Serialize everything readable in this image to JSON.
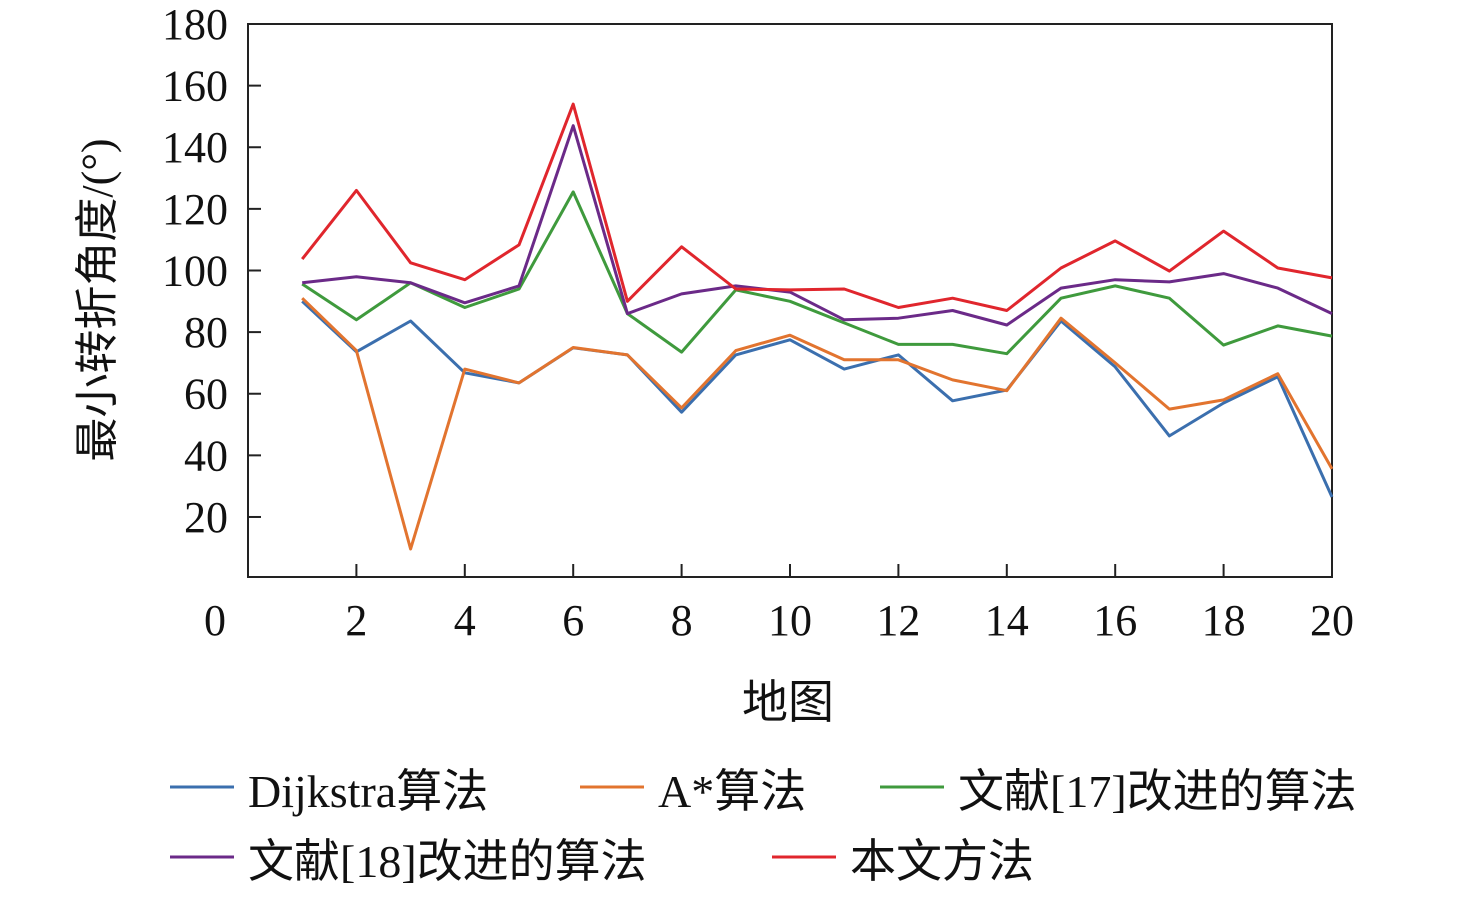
{
  "chart_data": {
    "type": "line",
    "title": "",
    "xlabel": "地图",
    "ylabel": "最小转折角度/(°)",
    "xlim": [
      0,
      20
    ],
    "ylim": [
      0,
      180
    ],
    "origin_label": "0",
    "xticks": [
      2,
      4,
      6,
      8,
      10,
      12,
      14,
      16,
      18,
      20
    ],
    "yticks": [
      20,
      40,
      60,
      80,
      100,
      120,
      140,
      160,
      180
    ],
    "grid": false,
    "legend_position": "bottom",
    "x": [
      1,
      2,
      3,
      4,
      5,
      6,
      7,
      8,
      9,
      10,
      11,
      12,
      13,
      14,
      15,
      16,
      17,
      18,
      19,
      20
    ],
    "series": [
      {
        "name": "Dijkstra算法",
        "color": "#3b6fae",
        "values": [
          90,
          73.6,
          83.6,
          66.8,
          63.5,
          74.9,
          72.6,
          54,
          72.6,
          77.5,
          68,
          72.6,
          57.7,
          61.2,
          83.6,
          68.7,
          46.3,
          57,
          65.5,
          26.5
        ]
      },
      {
        "name": "A*算法",
        "color": "#e2742f",
        "values": [
          91,
          74,
          9.6,
          68,
          63.5,
          75,
          72.6,
          55.4,
          74,
          79,
          71,
          71,
          64.5,
          61,
          84.5,
          70,
          55,
          58,
          66.5,
          35.6
        ]
      },
      {
        "name": "文献[17]改进的算法",
        "color": "#3f9a3d",
        "values": [
          95.6,
          84,
          96,
          88,
          94,
          125.5,
          86,
          73.5,
          93.7,
          90,
          83,
          76,
          76,
          73,
          91,
          95,
          91,
          75.8,
          82,
          78.7
        ]
      },
      {
        "name": "文献[18]改进的算法",
        "color": "#6b2a88",
        "values": [
          96,
          98,
          96,
          89.5,
          95,
          147,
          86,
          92.4,
          95,
          93,
          84,
          84.5,
          87,
          82.3,
          94.3,
          97,
          96.3,
          99,
          94.3,
          86
        ]
      },
      {
        "name": "本文方法",
        "color": "#e0262d",
        "values": [
          103.7,
          126,
          102.5,
          97,
          108.3,
          154,
          90,
          107.7,
          94,
          93.7,
          94,
          88,
          91,
          87,
          100.8,
          109.6,
          99.8,
          112.8,
          100.8,
          97.6
        ]
      }
    ]
  }
}
